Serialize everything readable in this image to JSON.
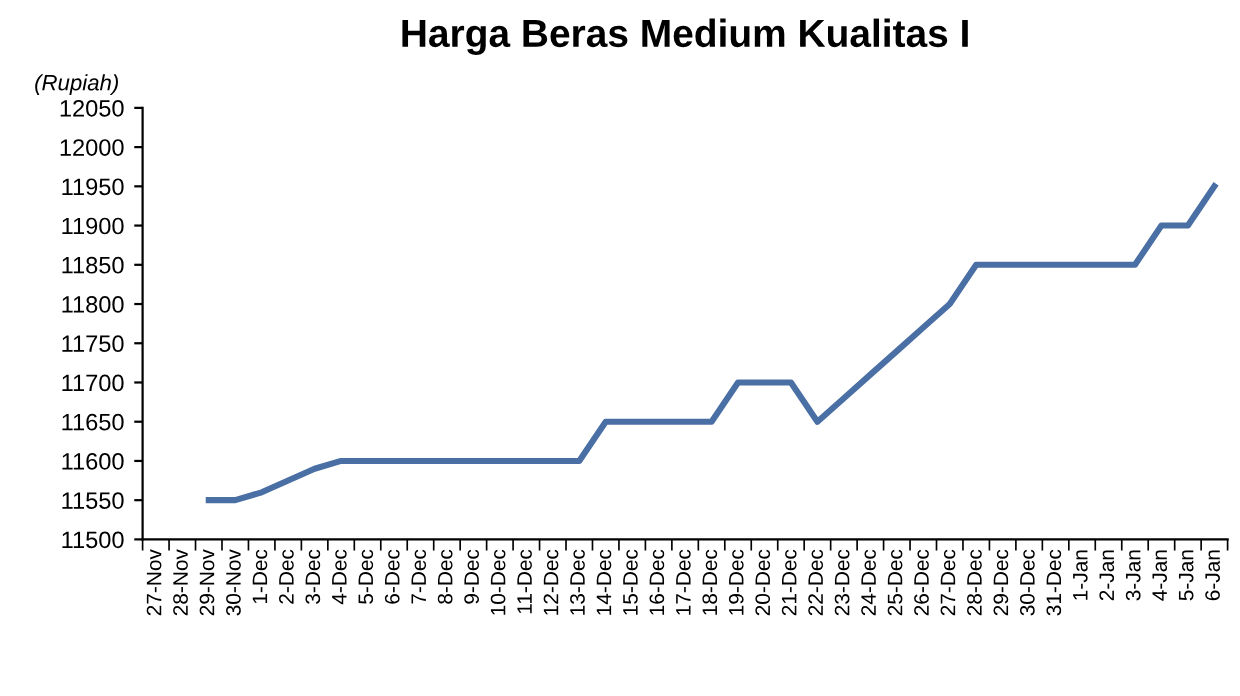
{
  "chart_data": {
    "type": "line",
    "title": "Harga Beras Medium Kualitas I",
    "ylabel": "(Rupiah)",
    "categories": [
      "27-Nov",
      "28-Nov",
      "29-Nov",
      "30-Nov",
      "1-Dec",
      "2-Dec",
      "3-Dec",
      "4-Dec",
      "5-Dec",
      "6-Dec",
      "7-Dec",
      "8-Dec",
      "9-Dec",
      "10-Dec",
      "11-Dec",
      "12-Dec",
      "13-Dec",
      "14-Dec",
      "15-Dec",
      "16-Dec",
      "17-Dec",
      "18-Dec",
      "19-Dec",
      "20-Dec",
      "21-Dec",
      "22-Dec",
      "23-Dec",
      "24-Dec",
      "25-Dec",
      "26-Dec",
      "27-Dec",
      "28-Dec",
      "29-Dec",
      "30-Dec",
      "31-Dec",
      "1-Jan",
      "2-Jan",
      "3-Jan",
      "4-Jan",
      "5-Jan",
      "6-Jan"
    ],
    "series": [
      {
        "color": "#4a6fa5",
        "values": [
          null,
          null,
          11550,
          11550,
          11560,
          11575,
          11590,
          11600,
          11600,
          11600,
          11600,
          11600,
          11600,
          11600,
          11600,
          11600,
          11600,
          11650,
          11650,
          11650,
          11650,
          11650,
          11700,
          11700,
          11700,
          11650,
          11680,
          11710,
          11740,
          11770,
          11800,
          11850,
          11850,
          11850,
          11850,
          11850,
          11850,
          11850,
          11900,
          11900,
          11950
        ]
      }
    ],
    "ylim": [
      11500,
      12050
    ],
    "yticks": [
      11500,
      11550,
      11600,
      11650,
      11700,
      11750,
      11800,
      11850,
      11900,
      11950,
      12000,
      12050
    ],
    "grid": false,
    "legend": false,
    "marker": "none",
    "line_style": "solid"
  }
}
